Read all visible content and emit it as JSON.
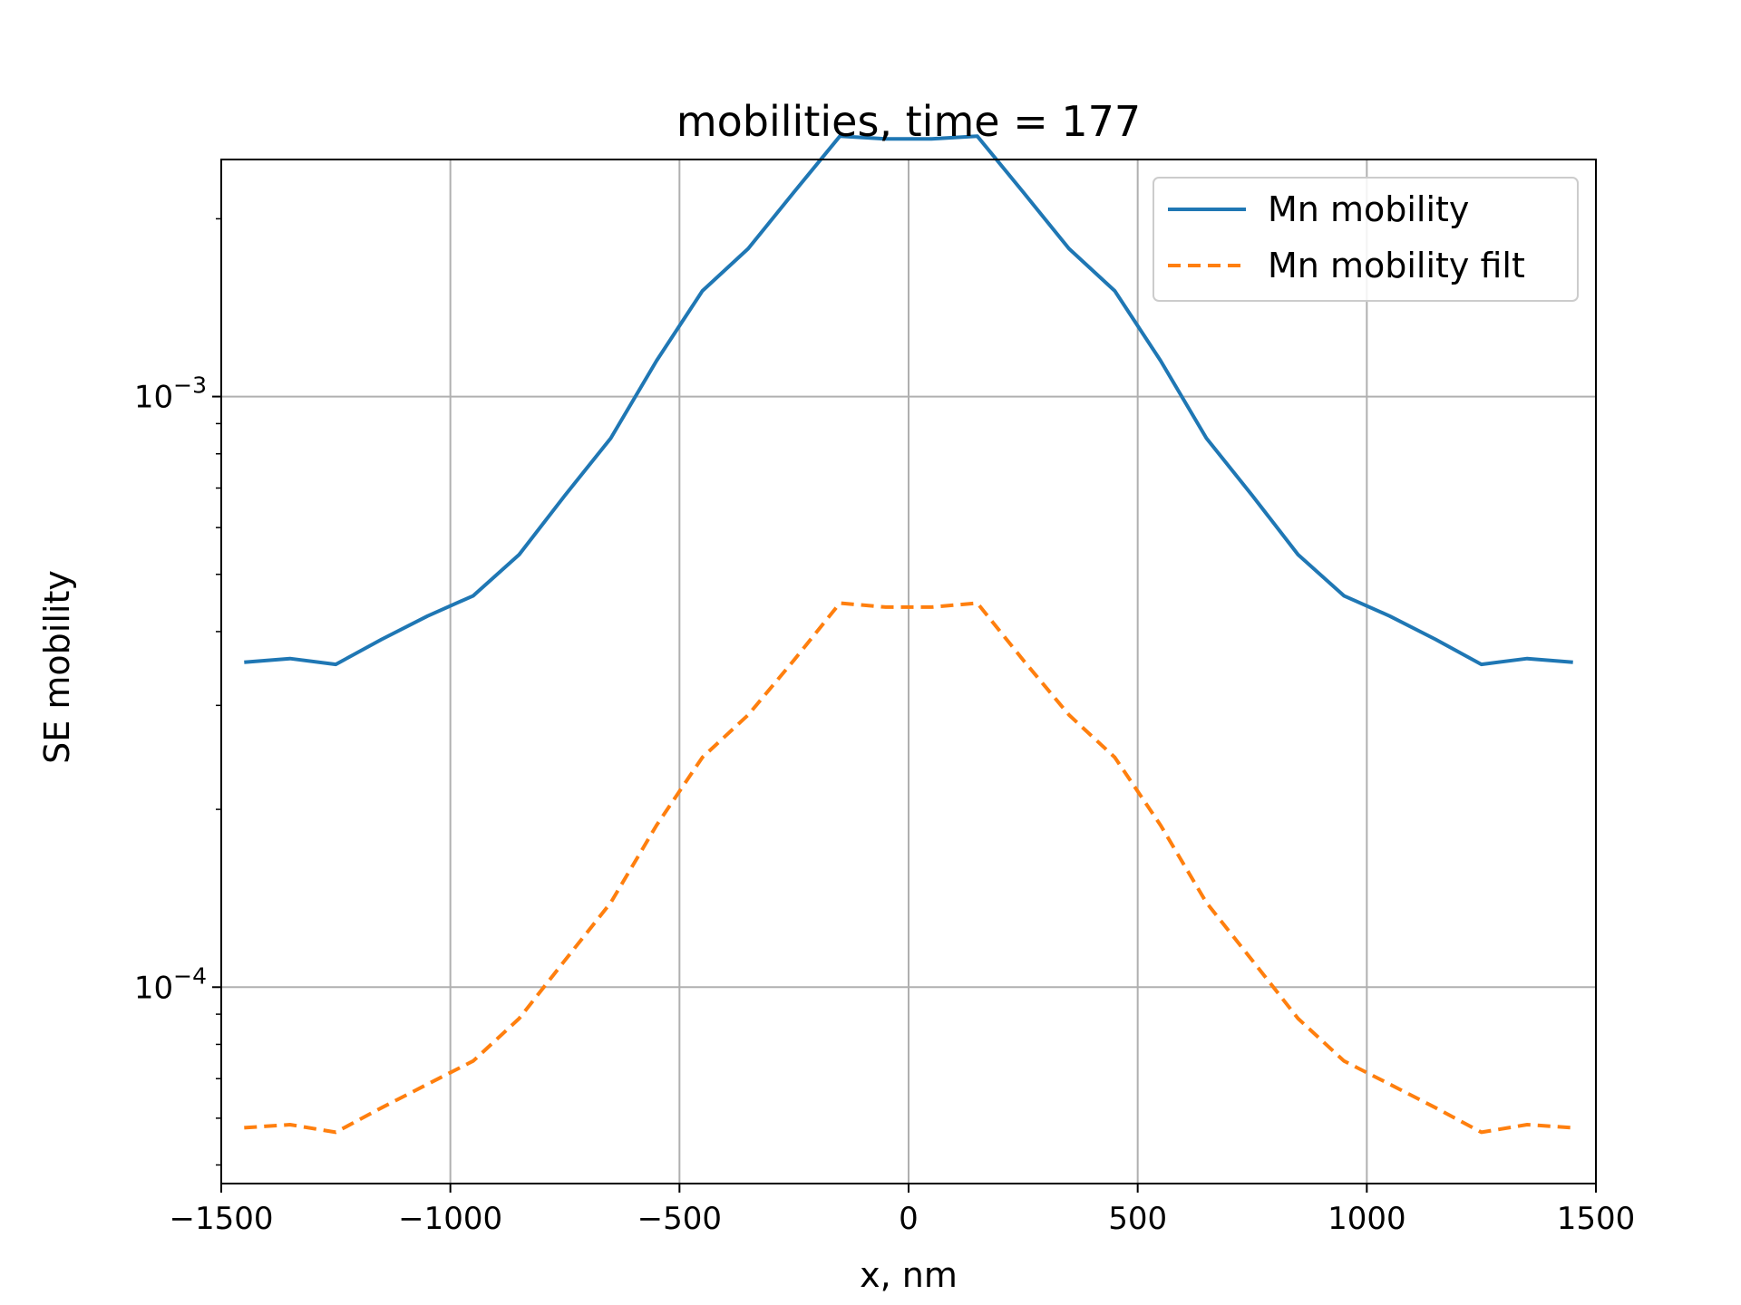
{
  "chart_data": {
    "type": "line",
    "title": "mobilities, time = 177",
    "xlabel": "x, nm",
    "ylabel": "SE mobility",
    "xlim": [
      -1500,
      1500
    ],
    "ylim": [
      4.65e-05,
      0.00252
    ],
    "yscale": "log",
    "grid": true,
    "legend_position": "top-right",
    "x_ticks": [
      -1500,
      -1000,
      -500,
      0,
      500,
      1000,
      1500
    ],
    "x_tick_labels": [
      "−1500",
      "−1000",
      "−500",
      "0",
      "500",
      "1000",
      "1500"
    ],
    "y_major_ticks": [
      {
        "value": 0.001,
        "base": "10",
        "exp": "−3"
      },
      {
        "value": 0.0001,
        "base": "10",
        "exp": "−4"
      }
    ],
    "y_minor_ticks": [
      5e-05,
      6e-05,
      7e-05,
      8e-05,
      9e-05,
      0.0002,
      0.0003,
      0.0004,
      0.0005,
      0.0006,
      0.0007,
      0.0008,
      0.0009,
      0.002
    ],
    "x": [
      -1450,
      -1350,
      -1250,
      -1150,
      -1050,
      -950,
      -850,
      -750,
      -650,
      -550,
      -450,
      -350,
      -250,
      -150,
      -50,
      50,
      150,
      250,
      350,
      450,
      550,
      650,
      750,
      850,
      950,
      1050,
      1150,
      1250,
      1350,
      1450
    ],
    "series": [
      {
        "name": "Mn mobility",
        "color": "#1f77b4",
        "style": "solid",
        "values": [
          0.000355,
          0.00036,
          0.000352,
          0.000388,
          0.000425,
          0.00046,
          0.00054,
          0.00068,
          0.00085,
          0.00115,
          0.00151,
          0.00178,
          0.00222,
          0.00276,
          0.00273,
          0.00273,
          0.00276,
          0.00222,
          0.00178,
          0.00151,
          0.00115,
          0.00085,
          0.00068,
          0.00054,
          0.00046,
          0.000425,
          0.000388,
          0.000352,
          0.00036,
          0.000355
        ]
      },
      {
        "name": "Mn mobility filt",
        "color": "#ff7f0e",
        "style": "dashed",
        "values": [
          5.78e-05,
          5.85e-05,
          5.68e-05,
          6.25e-05,
          6.85e-05,
          7.5e-05,
          8.85e-05,
          0.000111,
          0.000139,
          0.000188,
          0.000245,
          0.000289,
          0.000358,
          0.000447,
          0.00044,
          0.00044,
          0.000447,
          0.000358,
          0.000289,
          0.000245,
          0.000188,
          0.000139,
          0.000111,
          8.85e-05,
          7.5e-05,
          6.85e-05,
          6.25e-05,
          5.68e-05,
          5.85e-05,
          5.78e-05
        ]
      }
    ]
  }
}
